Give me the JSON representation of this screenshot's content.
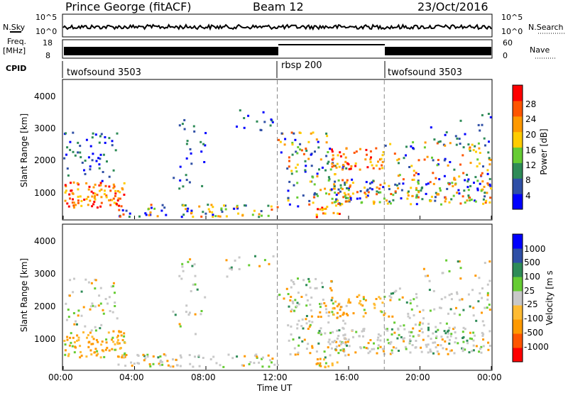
{
  "header": {
    "station": "Prince George (fitACF)",
    "beam": "Beam 12",
    "date": "23/Oct/2016"
  },
  "noise_panel": {
    "left_label": "N.Sky",
    "right_label": "N.Search",
    "left_ticks": [
      "10^5",
      "10^0"
    ],
    "right_ticks": [
      "10^5",
      "10^0"
    ]
  },
  "freq_panel": {
    "left_label_1": "Freq.",
    "left_label_2": "[MHz]",
    "right_label": "Nave",
    "left_ticks": [
      "18",
      "8"
    ],
    "right_ticks": [
      "60",
      "0"
    ]
  },
  "cpid": {
    "label": "CPID",
    "segments": [
      {
        "name": "twofsound 3503",
        "start_hour": 0
      },
      {
        "name": "rbsp 200",
        "start_hour": 12
      },
      {
        "name": "twofsound 3503",
        "start_hour": 18
      }
    ]
  },
  "colors": {
    "power_scale": [
      "#0000ff",
      "#2f4fa6",
      "#2e8b57",
      "#66cc33",
      "#ffcc00",
      "#ff9900",
      "#ff5500",
      "#ff0000"
    ],
    "velocity_scale": [
      "#ff0000",
      "#ff5500",
      "#ff9900",
      "#ffbb33",
      "#c8c8c8",
      "#66cc33",
      "#2e8b57",
      "#2f4fa6",
      "#0000ff"
    ]
  },
  "chart_data": [
    {
      "type": "heatmap",
      "name": "power",
      "ylabel": "Slant Range [km]",
      "yticks": [
        "1000",
        "2000",
        "3000",
        "4000"
      ],
      "ylim": [
        200,
        4600
      ],
      "xlim": [
        0,
        24
      ],
      "colorbar_label": "Power [dB]",
      "colorbar_ticks": [
        "4",
        "8",
        "12",
        "16",
        "20",
        "24",
        "28"
      ],
      "colorbar_range": [
        0,
        32
      ]
    },
    {
      "type": "heatmap",
      "name": "velocity",
      "ylabel": "Slant Range [km]",
      "yticks": [
        "1000",
        "2000",
        "3000",
        "4000"
      ],
      "ylim": [
        200,
        4600
      ],
      "xlim": [
        0,
        24
      ],
      "xlabel": "Time UT",
      "xticks": [
        "00:00",
        "04:00",
        "08:00",
        "12:00",
        "16:00",
        "20:00",
        "00:00"
      ],
      "colorbar_label": "Velocity [m s",
      "colorbar_ticks": [
        "1000",
        "500",
        "100",
        "25",
        "-25",
        "-100",
        "-500",
        "-1000"
      ]
    }
  ]
}
